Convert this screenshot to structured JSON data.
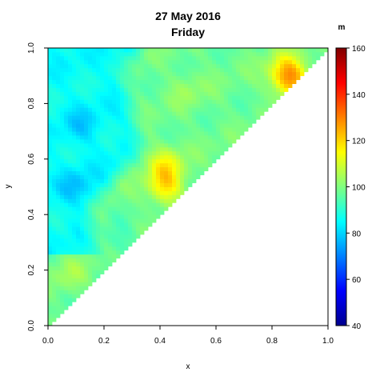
{
  "chart_data": {
    "type": "heatmap",
    "title": "27 May 2016",
    "subtitle": "Friday",
    "xlabel": "x",
    "ylabel": "y",
    "xlim": [
      0,
      1
    ],
    "ylim": [
      0,
      1
    ],
    "x_ticks": [
      "0.0",
      "0.2",
      "0.4",
      "0.6",
      "0.8",
      "1.0"
    ],
    "y_ticks": [
      "0.0",
      "0.2",
      "0.4",
      "0.6",
      "0.8",
      "1.0"
    ],
    "domain": "upper-left triangle (y >= x)",
    "colorbar": {
      "label": "m",
      "min": 40,
      "max": 160,
      "ticks": [
        "40",
        "60",
        "80",
        "100",
        "120",
        "140",
        "160"
      ],
      "colormap": [
        "#00008F",
        "#0000FF",
        "#0080FF",
        "#00FFFF",
        "#80FF80",
        "#FFFF00",
        "#FF8000",
        "#FF0000",
        "#800000"
      ]
    },
    "value_field": {
      "background": 98,
      "hotspots": [
        {
          "x": 0.12,
          "y": 0.72,
          "value": 86,
          "note": "cyan region left side"
        },
        {
          "x": 0.1,
          "y": 0.5,
          "value": 84
        },
        {
          "x": 0.25,
          "y": 0.3,
          "value": 88
        },
        {
          "x": 0.42,
          "y": 0.5,
          "value": 132
        },
        {
          "x": 0.42,
          "y": 0.58,
          "value": 124
        },
        {
          "x": 0.85,
          "y": 0.92,
          "value": 128
        },
        {
          "x": 0.87,
          "y": 0.88,
          "value": 134
        },
        {
          "x": 0.08,
          "y": 0.18,
          "value": 108
        },
        {
          "x": 0.5,
          "y": 0.85,
          "value": 106
        }
      ]
    }
  }
}
